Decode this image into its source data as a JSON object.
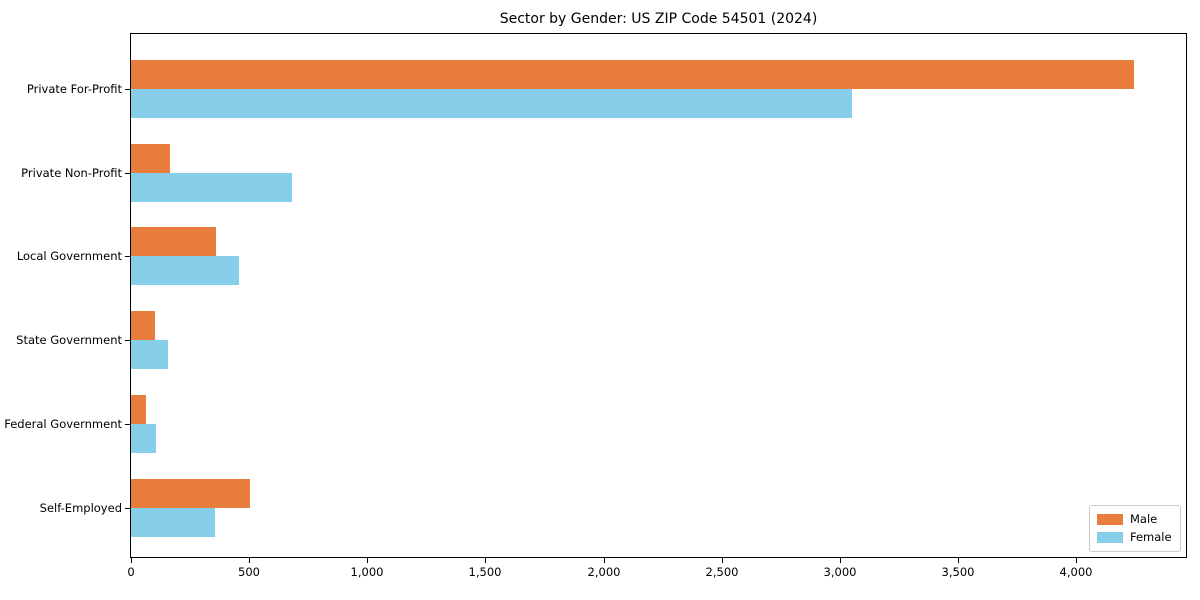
{
  "title": "Sector by Gender: US ZIP Code 54501 (2024)",
  "colors": {
    "male": "#E87D3E",
    "female": "#87CEEB",
    "axis": "#000000",
    "legend_border": "#cccccc",
    "background": "#ffffff"
  },
  "legend": {
    "position": "lower right",
    "items": [
      {
        "label": "Male",
        "color": "#E87D3E"
      },
      {
        "label": "Female",
        "color": "#87CEEB"
      }
    ]
  },
  "chart_data": {
    "type": "bar",
    "orientation": "horizontal",
    "title": "Sector by Gender: US ZIP Code 54501 (2024)",
    "xlabel": "",
    "ylabel": "",
    "categories": [
      "Private For-Profit",
      "Private Non-Profit",
      "Local Government",
      "State Government",
      "Federal Government",
      "Self-Employed"
    ],
    "series": [
      {
        "name": "Male",
        "color": "#E87D3E",
        "values": [
          4245,
          165,
          360,
          100,
          65,
          505
        ]
      },
      {
        "name": "Female",
        "color": "#87CEEB",
        "values": [
          3050,
          680,
          455,
          155,
          105,
          355
        ]
      }
    ],
    "xlim": [
      0,
      4465
    ],
    "xticks": [
      0,
      500,
      1000,
      1500,
      2000,
      2500,
      3000,
      3500,
      4000
    ],
    "xtick_labels": [
      "0",
      "500",
      "1,000",
      "1,500",
      "2,000",
      "2,500",
      "3,000",
      "3,500",
      "4,000"
    ],
    "grid": false,
    "legend_position": "lower right"
  }
}
